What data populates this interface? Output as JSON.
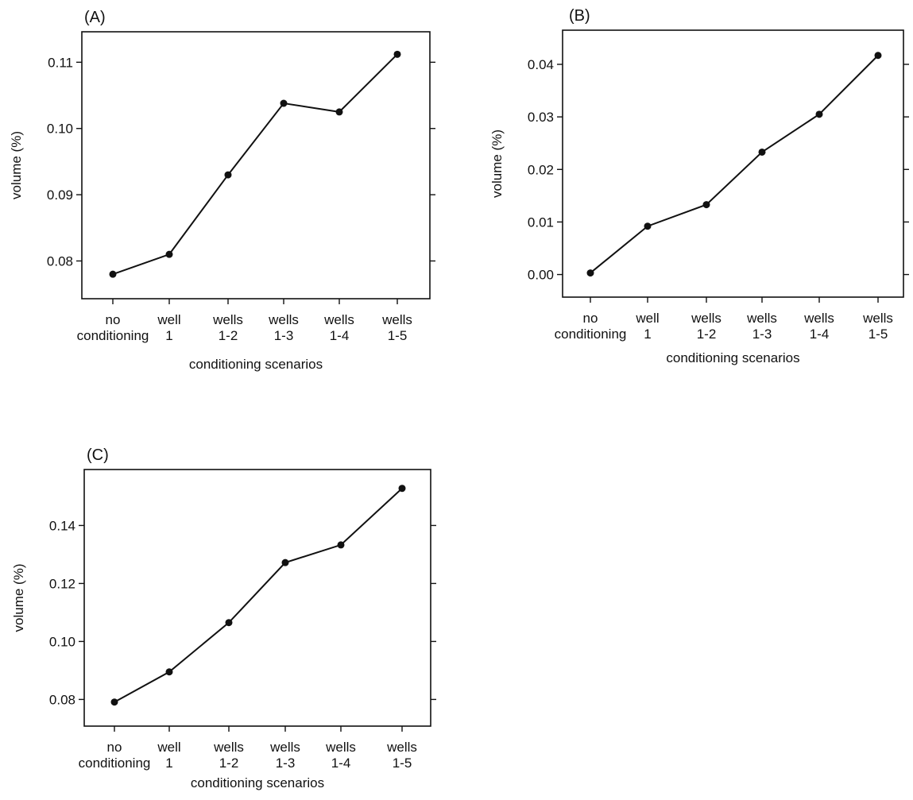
{
  "chart_data": [
    {
      "panel_label": "(A)",
      "type": "line",
      "categories": [
        [
          "no",
          "conditioning"
        ],
        [
          "well",
          "1"
        ],
        [
          "wells",
          "1-2"
        ],
        [
          "wells",
          "1-3"
        ],
        [
          "wells",
          "1-4"
        ],
        [
          "wells",
          "1-5"
        ]
      ],
      "values": [
        0.078,
        0.081,
        0.093,
        0.1038,
        0.1025,
        0.1112
      ],
      "xlabel": "conditioning scenarios",
      "ylabel": "volume (%)",
      "yticks": [
        "0.08",
        "0.09",
        "0.10",
        "0.11"
      ],
      "ylim": [
        0.0743,
        0.1146
      ],
      "grid": false
    },
    {
      "panel_label": "(B)",
      "type": "line",
      "categories": [
        [
          "no",
          "conditioning"
        ],
        [
          "well",
          "1"
        ],
        [
          "wells",
          "1-2"
        ],
        [
          "wells",
          "1-3"
        ],
        [
          "wells",
          "1-4"
        ],
        [
          "wells",
          "1-5"
        ]
      ],
      "values": [
        0.0003,
        0.0092,
        0.0133,
        0.0233,
        0.0305,
        0.0417
      ],
      "xlabel": "conditioning scenarios",
      "ylabel": "volume (%)",
      "yticks": [
        "0.00",
        "0.01",
        "0.02",
        "0.03",
        "0.04"
      ],
      "ylim": [
        -0.0043,
        0.0465
      ],
      "grid": false
    },
    {
      "panel_label": "(C)",
      "type": "line",
      "categories": [
        [
          "no",
          "conditioning"
        ],
        [
          "well",
          "1"
        ],
        [
          "wells",
          "1-2"
        ],
        [
          "wells",
          "1-3"
        ],
        [
          "wells",
          "1-4"
        ],
        [
          "wells",
          "1-5"
        ]
      ],
      "values": [
        0.0791,
        0.0895,
        0.1065,
        0.1272,
        0.1333,
        0.1528
      ],
      "xlabel": "conditioning scenarios",
      "ylabel": "volume (%)",
      "yticks": [
        "0.08",
        "0.10",
        "0.12",
        "0.14"
      ],
      "ylim": [
        0.0708,
        0.1593
      ],
      "grid": false
    }
  ]
}
